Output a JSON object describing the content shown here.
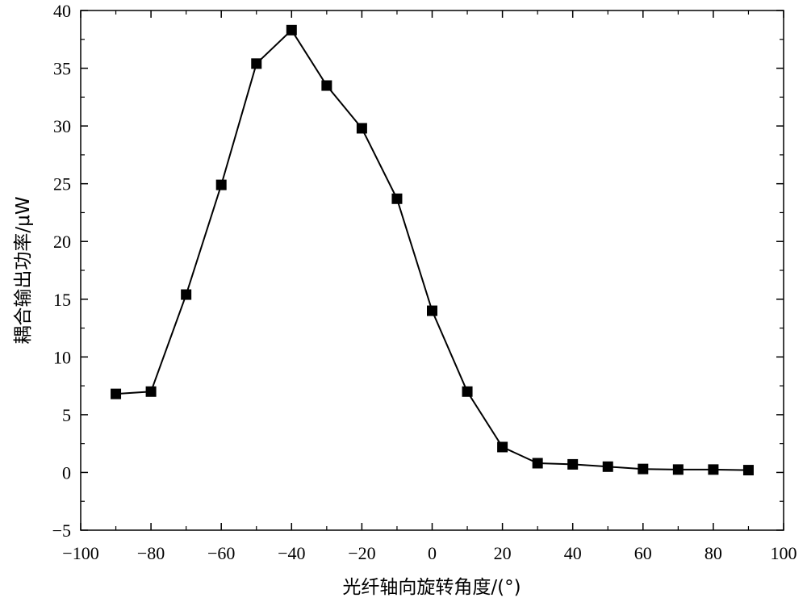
{
  "chart_data": {
    "type": "line",
    "title": "",
    "xlabel": "光纤轴向旋转角度/(°)",
    "ylabel": "耦合输出功率/μW",
    "xlim": [
      -100,
      100
    ],
    "ylim": [
      -5,
      40
    ],
    "xticks": [
      -100,
      -80,
      -60,
      -40,
      -20,
      0,
      20,
      40,
      60,
      80,
      100
    ],
    "yticks": [
      -5,
      0,
      5,
      10,
      15,
      20,
      25,
      30,
      35,
      40
    ],
    "xtick_labels": [
      "−100",
      "−80",
      "−60",
      "−40",
      "−20",
      "0",
      "20",
      "40",
      "60",
      "80",
      "100"
    ],
    "ytick_labels": [
      "−5",
      "0",
      "5",
      "10",
      "15",
      "20",
      "25",
      "30",
      "35",
      "40"
    ],
    "grid": false,
    "legend": "none",
    "marker": "square",
    "series_color": "#000000",
    "series": [
      {
        "x": [
          -90,
          -80,
          -70,
          -60,
          -50,
          -40,
          -30,
          -20,
          -10,
          0,
          10,
          20,
          30,
          40,
          50,
          60,
          70,
          80,
          90
        ],
        "values": [
          6.8,
          7.0,
          15.4,
          24.9,
          35.4,
          38.3,
          33.5,
          29.8,
          23.7,
          14.0,
          7.0,
          2.2,
          0.8,
          0.7,
          0.5,
          0.3,
          0.25,
          0.25,
          0.2
        ]
      }
    ]
  }
}
